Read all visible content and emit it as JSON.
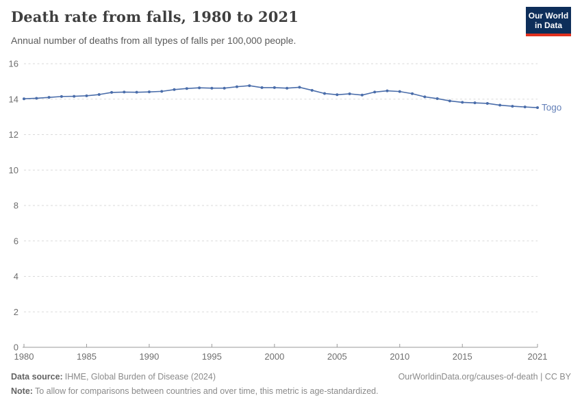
{
  "header": {
    "title": "Death rate from falls, 1980 to 2021",
    "subtitle": "Annual number of deaths from all types of falls per 100,000 people."
  },
  "logo": {
    "line1": "Our World",
    "line2": "in Data",
    "bg_color": "#0d2e5a",
    "stripe_color": "#e0301e"
  },
  "chart_data": {
    "type": "line",
    "title": "Death rate from falls, 1980 to 2021",
    "xlabel": "",
    "ylabel": "",
    "ylim": [
      0,
      16
    ],
    "yticks": [
      0,
      2,
      4,
      6,
      8,
      10,
      12,
      14,
      16
    ],
    "xticks": [
      1980,
      1985,
      1990,
      1995,
      2000,
      2005,
      2010,
      2015,
      2021
    ],
    "grid": "horizontal-dashed",
    "legend_position": "end-of-line",
    "x": [
      1980,
      1981,
      1982,
      1983,
      1984,
      1985,
      1986,
      1987,
      1988,
      1989,
      1990,
      1991,
      1992,
      1993,
      1994,
      1995,
      1996,
      1997,
      1998,
      1999,
      2000,
      2001,
      2002,
      2003,
      2004,
      2005,
      2006,
      2007,
      2008,
      2009,
      2010,
      2011,
      2012,
      2013,
      2014,
      2015,
      2016,
      2017,
      2018,
      2019,
      2020,
      2021
    ],
    "series": [
      {
        "name": "Togo",
        "color": "#4a6daa",
        "label_color": "#6480b8",
        "values": [
          14.02,
          14.05,
          14.1,
          14.15,
          14.16,
          14.19,
          14.26,
          14.38,
          14.4,
          14.39,
          14.41,
          14.44,
          14.54,
          14.6,
          14.64,
          14.62,
          14.62,
          14.7,
          14.76,
          14.65,
          14.65,
          14.62,
          14.67,
          14.5,
          14.32,
          14.25,
          14.3,
          14.23,
          14.4,
          14.47,
          14.43,
          14.31,
          14.13,
          14.03,
          13.9,
          13.82,
          13.79,
          13.76,
          13.66,
          13.6,
          13.56,
          13.52
        ]
      }
    ]
  },
  "footer": {
    "data_source_label": "Data source:",
    "data_source": "IHME, Global Burden of Disease (2024)",
    "note_label": "Note:",
    "note": "To allow for comparisons between countries and over time, this metric is age-standardized.",
    "link": "OurWorldinData.org/causes-of-death | CC BY"
  },
  "colors": {
    "grid": "#d9d9d9",
    "axis": "#9a9a9a",
    "tick_label": "#6e6e6e",
    "title_text": "#3f3f3f",
    "subtitle_text": "#5a5a5a"
  }
}
